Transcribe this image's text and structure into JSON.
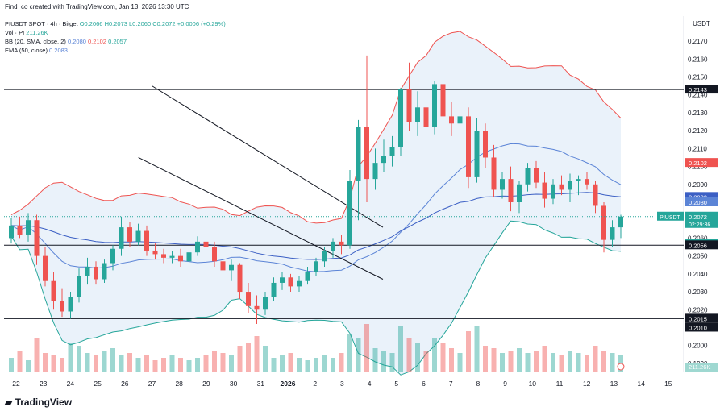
{
  "header": {
    "text": "Find_co created with TradingView.com, Jan 13, 2026 13:30 UTC"
  },
  "legend": {
    "symbol": "PIUSDT SPOT · 4h · Bitget",
    "o": "O0.2066",
    "h": "H0.2073",
    "l": "L0.2060",
    "c": "C0.2072",
    "chg": "+0.0006 (+0.29%)",
    "vol_label": "Vol · PI",
    "vol_value": "211.26K",
    "bb_label": "BB (20, SMA, close, 2)",
    "bb_basis": "0.2080",
    "bb_upper": "0.2102",
    "bb_lower": "0.2057",
    "ema_label": "EMA (50, close)",
    "ema_value": "0.2083"
  },
  "footer": {
    "logo": "TradingView"
  },
  "colors": {
    "up": "#26a69a",
    "down": "#ef5350",
    "bb_upper": "#ef5350",
    "bb_lower": "#26a69a",
    "bb_basis": "#5b84d6",
    "ema": "#3b5fc4",
    "fill": "#e3edf8"
  },
  "chart_data": {
    "type": "candlestick",
    "currency": "USDT",
    "ylim": [
      0.1985,
      0.2175
    ],
    "y_ticks": [
      "0.2170",
      "0.2160",
      "0.2150",
      "0.2140",
      "0.2130",
      "0.2120",
      "0.2110",
      "0.2100",
      "0.2090",
      "0.2080",
      "0.2070",
      "0.2060",
      "0.2050",
      "0.2040",
      "0.2030",
      "0.2020",
      "0.2010",
      "0.2000",
      "0.1990"
    ],
    "x_labels": [
      "22",
      "23",
      "24",
      "25",
      "26",
      "27",
      "28",
      "29",
      "30",
      "31",
      "2026",
      "2",
      "3",
      "4",
      "5",
      "6",
      "7",
      "8",
      "9",
      "10",
      "11",
      "12",
      "13",
      "14",
      "15"
    ],
    "horizontal_levels": [
      0.2143,
      0.2056,
      0.2015
    ],
    "price_badges": [
      {
        "label": "0.2143",
        "value": 0.2143,
        "color": "#131722"
      },
      {
        "label": "0.2102",
        "value": 0.2102,
        "color": "#ef5350"
      },
      {
        "label": "0.2083",
        "value": 0.2083,
        "color": "#3b5fc4"
      },
      {
        "label": "0.2080",
        "value": 0.208,
        "color": "#5b84d6"
      },
      {
        "label": "0.2072",
        "value": 0.2072,
        "color": "#26a69a",
        "sub": "02:29:36"
      },
      {
        "label": "0.2057",
        "value": 0.2057,
        "color": "#26a69a"
      },
      {
        "label": "0.2056",
        "value": 0.2056,
        "color": "#131722"
      },
      {
        "label": "0.2015",
        "value": 0.2015,
        "color": "#131722"
      },
      {
        "label": "0.2010",
        "value": 0.201,
        "color": "#131722"
      }
    ],
    "symbol_tag": "PIUSDT",
    "vol_badge": "211.26K",
    "channel": {
      "upper": [
        [
          5.0,
          0.2145
        ],
        [
          13.5,
          0.2066
        ]
      ],
      "lower": [
        [
          4.5,
          0.2105
        ],
        [
          13.5,
          0.2037
        ]
      ]
    },
    "candles": [
      [
        0.206,
        0.2071,
        0.2057,
        0.2067
      ],
      [
        0.2067,
        0.2072,
        0.206,
        0.2062
      ],
      [
        0.2062,
        0.2074,
        0.2058,
        0.207
      ],
      [
        0.207,
        0.2073,
        0.2045,
        0.205
      ],
      [
        0.205,
        0.2055,
        0.2033,
        0.2036
      ],
      [
        0.2036,
        0.2041,
        0.202,
        0.2025
      ],
      [
        0.2025,
        0.2032,
        0.2016,
        0.2019
      ],
      [
        0.2019,
        0.203,
        0.2015,
        0.2027
      ],
      [
        0.2027,
        0.2043,
        0.2024,
        0.2039
      ],
      [
        0.2039,
        0.2049,
        0.2034,
        0.2044
      ],
      [
        0.2044,
        0.2047,
        0.2034,
        0.2037
      ],
      [
        0.2037,
        0.2048,
        0.2035,
        0.2046
      ],
      [
        0.2046,
        0.2056,
        0.2042,
        0.2054
      ],
      [
        0.2054,
        0.2072,
        0.205,
        0.2066
      ],
      [
        0.2066,
        0.2069,
        0.2055,
        0.2058
      ],
      [
        0.2058,
        0.2068,
        0.2056,
        0.2064
      ],
      [
        0.2064,
        0.2067,
        0.205,
        0.2053
      ],
      [
        0.2053,
        0.2057,
        0.2048,
        0.2051
      ],
      [
        0.2051,
        0.2054,
        0.2046,
        0.2049
      ],
      [
        0.2049,
        0.2053,
        0.2046,
        0.205
      ],
      [
        0.205,
        0.2054,
        0.2044,
        0.2047
      ],
      [
        0.2047,
        0.2054,
        0.2044,
        0.2052
      ],
      [
        0.2052,
        0.2061,
        0.205,
        0.2058
      ],
      [
        0.2058,
        0.2063,
        0.2052,
        0.2055
      ],
      [
        0.2055,
        0.2058,
        0.2044,
        0.2047
      ],
      [
        0.2047,
        0.205,
        0.2038,
        0.2042
      ],
      [
        0.2042,
        0.2048,
        0.2036,
        0.2045
      ],
      [
        0.2045,
        0.2046,
        0.2026,
        0.203
      ],
      [
        0.203,
        0.2035,
        0.2018,
        0.2022
      ],
      [
        0.2022,
        0.2028,
        0.2012,
        0.202
      ],
      [
        0.202,
        0.203,
        0.2017,
        0.2027
      ],
      [
        0.2027,
        0.2038,
        0.2025,
        0.2035
      ],
      [
        0.2035,
        0.2041,
        0.2031,
        0.2038
      ],
      [
        0.2038,
        0.204,
        0.203,
        0.2033
      ],
      [
        0.2033,
        0.2039,
        0.203,
        0.2036
      ],
      [
        0.2036,
        0.2044,
        0.2034,
        0.2041
      ],
      [
        0.2041,
        0.2049,
        0.2039,
        0.2047
      ],
      [
        0.2047,
        0.2055,
        0.2044,
        0.2053
      ],
      [
        0.2053,
        0.206,
        0.2049,
        0.2058
      ],
      [
        0.2058,
        0.2062,
        0.2051,
        0.2056
      ],
      [
        0.2056,
        0.2098,
        0.2054,
        0.2092
      ],
      [
        0.2092,
        0.2126,
        0.207,
        0.2122
      ],
      [
        0.2122,
        0.2162,
        0.208,
        0.2093
      ],
      [
        0.2093,
        0.211,
        0.2087,
        0.2102
      ],
      [
        0.2102,
        0.2115,
        0.2097,
        0.2106
      ],
      [
        0.2106,
        0.2117,
        0.21,
        0.2111
      ],
      [
        0.2111,
        0.2144,
        0.2106,
        0.2143
      ],
      [
        0.2143,
        0.2158,
        0.212,
        0.2125
      ],
      [
        0.2125,
        0.2142,
        0.2117,
        0.2133
      ],
      [
        0.2133,
        0.214,
        0.2118,
        0.2122
      ],
      [
        0.2122,
        0.2148,
        0.2118,
        0.2146
      ],
      [
        0.2146,
        0.215,
        0.2121,
        0.2128
      ],
      [
        0.2128,
        0.2136,
        0.2117,
        0.2124
      ],
      [
        0.2124,
        0.2131,
        0.211,
        0.2128
      ],
      [
        0.2128,
        0.2133,
        0.2088,
        0.2094
      ],
      [
        0.2094,
        0.2127,
        0.2091,
        0.212
      ],
      [
        0.212,
        0.2124,
        0.2099,
        0.2105
      ],
      [
        0.2105,
        0.2112,
        0.2083,
        0.2087
      ],
      [
        0.2087,
        0.2097,
        0.2082,
        0.2093
      ],
      [
        0.2093,
        0.21,
        0.2075,
        0.208
      ],
      [
        0.208,
        0.2092,
        0.2074,
        0.209
      ],
      [
        0.209,
        0.2102,
        0.2086,
        0.2099
      ],
      [
        0.2099,
        0.2103,
        0.2088,
        0.2091
      ],
      [
        0.2091,
        0.2097,
        0.2077,
        0.2082
      ],
      [
        0.2082,
        0.2093,
        0.2079,
        0.209
      ],
      [
        0.209,
        0.2095,
        0.2084,
        0.2087
      ],
      [
        0.2087,
        0.2096,
        0.208,
        0.2092
      ],
      [
        0.2092,
        0.2095,
        0.2084,
        0.2093
      ],
      [
        0.2093,
        0.2097,
        0.2087,
        0.209
      ],
      [
        0.209,
        0.2092,
        0.2074,
        0.2078
      ],
      [
        0.2078,
        0.208,
        0.2052,
        0.2059
      ],
      [
        0.2059,
        0.207,
        0.2055,
        0.2066
      ],
      [
        0.2066,
        0.2073,
        0.206,
        0.2072
      ]
    ],
    "volume": [
      0.3,
      0.45,
      0.25,
      0.7,
      0.4,
      0.35,
      0.3,
      0.6,
      0.55,
      0.4,
      0.35,
      0.45,
      0.5,
      0.35,
      0.4,
      0.3,
      0.35,
      0.25,
      0.3,
      0.35,
      0.3,
      0.25,
      0.3,
      0.35,
      0.45,
      0.4,
      0.35,
      0.55,
      0.6,
      0.75,
      0.55,
      0.3,
      0.35,
      0.4,
      0.3,
      0.25,
      0.3,
      0.35,
      0.3,
      0.4,
      0.8,
      0.7,
      1.0,
      0.5,
      0.45,
      0.4,
      0.95,
      0.7,
      0.6,
      0.45,
      0.7,
      0.6,
      0.5,
      0.4,
      0.85,
      0.95,
      0.55,
      0.5,
      0.4,
      0.45,
      0.5,
      0.4,
      0.45,
      0.55,
      0.4,
      0.35,
      0.45,
      0.4,
      0.35,
      0.55,
      0.45,
      0.4,
      0.35
    ]
  }
}
